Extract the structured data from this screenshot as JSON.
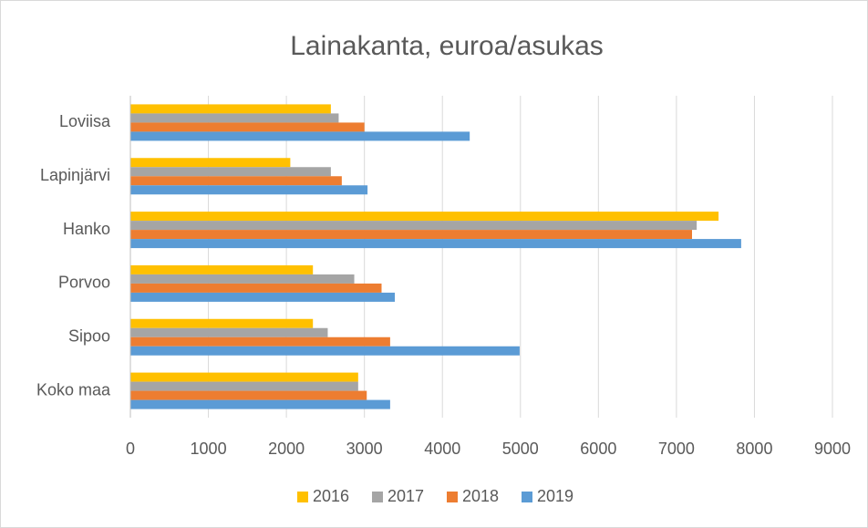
{
  "chart_data": {
    "type": "hbar",
    "title": "Lainakanta, euroa/asukas",
    "categories": [
      "Loviisa",
      "Lapinjärvi",
      "Hanko",
      "Porvoo",
      "Sipoo",
      "Koko maa"
    ],
    "series": [
      {
        "name": "2016",
        "color": "#ffc000",
        "values": [
          2570,
          2050,
          7540,
          2340,
          2340,
          2920
        ]
      },
      {
        "name": "2017",
        "color": "#a5a5a5",
        "values": [
          2670,
          2570,
          7260,
          2870,
          2530,
          2920
        ]
      },
      {
        "name": "2018",
        "color": "#ed7d31",
        "values": [
          3000,
          2710,
          7200,
          3220,
          3330,
          3030
        ]
      },
      {
        "name": "2019",
        "color": "#5b9bd5",
        "values": [
          4350,
          3040,
          7830,
          3390,
          4990,
          3330
        ]
      }
    ],
    "xlim": [
      0,
      9000
    ],
    "xticks": [
      0,
      1000,
      2000,
      3000,
      4000,
      5000,
      6000,
      7000,
      8000,
      9000
    ],
    "grid": true,
    "legend": "bottom"
  }
}
